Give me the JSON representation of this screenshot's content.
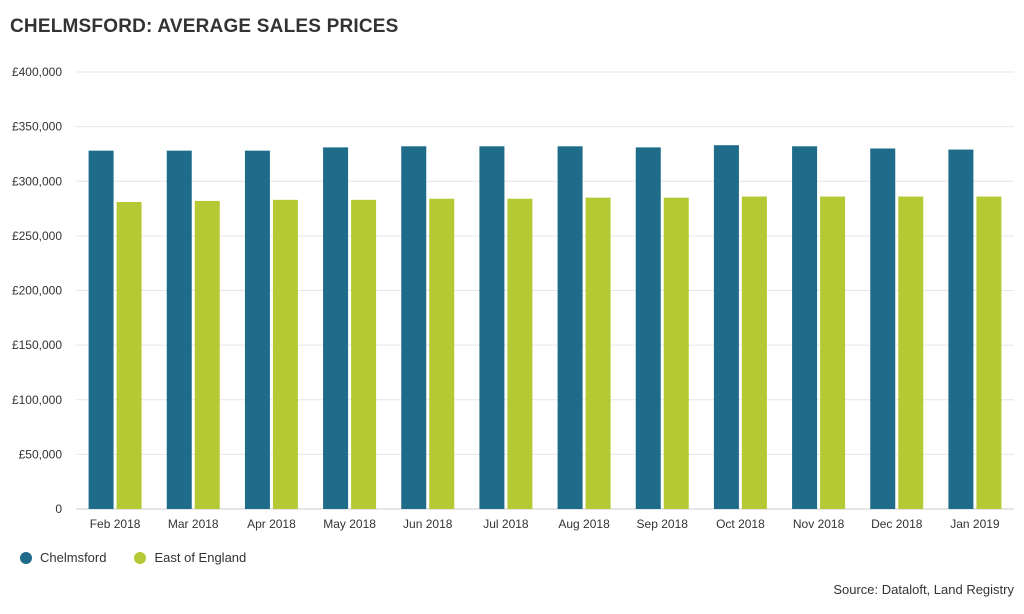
{
  "title": "CHELMSFORD: AVERAGE SALES PRICES",
  "source": "Source: Dataloft, Land Registry",
  "colors": {
    "chelmsford": "#1e6b8a",
    "east_of_england": "#b5c934",
    "grid": "#e6e6e6",
    "axis": "#cccccc"
  },
  "chart_data": {
    "type": "bar",
    "title": "CHELMSFORD: AVERAGE SALES PRICES",
    "xlabel": "",
    "ylabel": "",
    "ylim": [
      0,
      400000
    ],
    "yticks": [
      0,
      50000,
      100000,
      150000,
      200000,
      250000,
      300000,
      350000,
      400000
    ],
    "ytick_labels": [
      "0",
      "£50,000",
      "£100,000",
      "£150,000",
      "£200,000",
      "£250,000",
      "£300,000",
      "£350,000",
      "£400,000"
    ],
    "grid": true,
    "legend_position": "bottom-left",
    "categories": [
      "Feb 2018",
      "Mar 2018",
      "Apr 2018",
      "May 2018",
      "Jun 2018",
      "Jul 2018",
      "Aug 2018",
      "Sep 2018",
      "Oct 2018",
      "Nov 2018",
      "Dec 2018",
      "Jan 2019"
    ],
    "series": [
      {
        "name": "Chelmsford",
        "color": "#1e6b8a",
        "values": [
          328000,
          328000,
          328000,
          331000,
          332000,
          332000,
          332000,
          331000,
          333000,
          332000,
          330000,
          329000
        ]
      },
      {
        "name": "East of England",
        "color": "#b5c934",
        "values": [
          281000,
          282000,
          283000,
          283000,
          284000,
          284000,
          285000,
          285000,
          286000,
          286000,
          286000,
          286000
        ]
      }
    ]
  }
}
